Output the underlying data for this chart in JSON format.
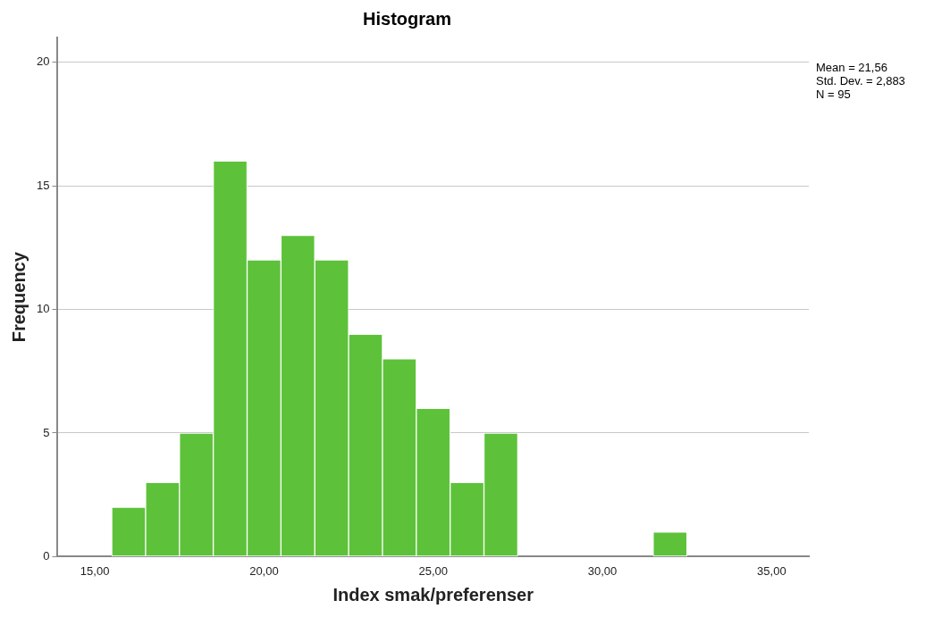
{
  "chart_data": {
    "type": "histogram",
    "title": "Histogram",
    "xlabel": "Index smak/preferenser",
    "ylabel": "Frequency",
    "bins": [
      15.5,
      16.5,
      17.5,
      18.5,
      19.5,
      20.5,
      21.5,
      22.5,
      23.5,
      24.5,
      25.5,
      26.5,
      27.5,
      28.5,
      29.5,
      30.5,
      31.5,
      32.5
    ],
    "values": [
      2,
      3,
      5,
      16,
      12,
      13,
      12,
      9,
      8,
      6,
      3,
      5,
      0,
      0,
      0,
      0,
      1
    ],
    "color": "#5dc23a",
    "xlim": [
      13.9,
      36.1
    ],
    "xticks": [
      {
        "value": 15,
        "label": "15,00"
      },
      {
        "value": 20,
        "label": "20,00"
      },
      {
        "value": 25,
        "label": "25,00"
      },
      {
        "value": 30,
        "label": "30,00"
      },
      {
        "value": 35,
        "label": "35,00"
      }
    ],
    "ylim": [
      0,
      21
    ],
    "yticks": [
      0,
      5,
      10,
      15,
      20
    ],
    "grid": "y",
    "annotations": [
      "Mean = 21,56",
      "Std. Dev. = 2,883",
      "N = 95"
    ]
  }
}
